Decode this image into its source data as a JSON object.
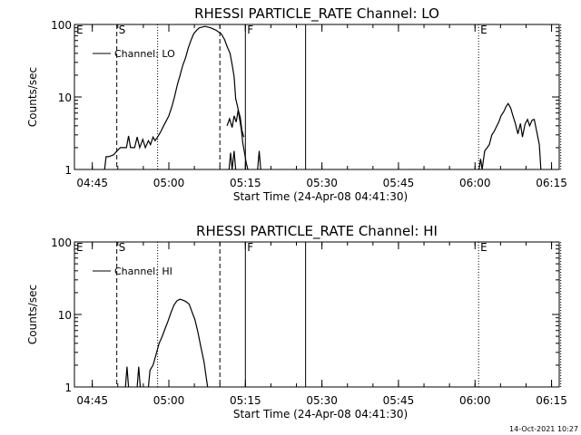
{
  "chart_data": [
    {
      "type": "line",
      "title": "RHESSI PARTICLE_RATE Channel: LO",
      "xlabel": "Start Time (24-Apr-08 04:41:30)",
      "ylabel": "Counts/sec",
      "y_scale": "log",
      "ylim": [
        1,
        100
      ],
      "xlim_minutes": [
        0,
        95
      ],
      "x_tick_labels": [
        "04:45",
        "05:00",
        "05:15",
        "05:30",
        "05:45",
        "06:00",
        "06:15"
      ],
      "y_tick_labels": [
        "1",
        "10",
        "100"
      ],
      "legend": {
        "label": "Channel: LO",
        "position": "top-left"
      },
      "markers": [
        {
          "label": "E",
          "t": 0,
          "style": "dotted"
        },
        {
          "label": "S",
          "t": 8.3,
          "style": "dashed"
        },
        {
          "label": "",
          "t": 16.3,
          "style": "dotted"
        },
        {
          "label": "",
          "t": 28.5,
          "style": "dashed"
        },
        {
          "label": "F",
          "t": 33.5,
          "style": "solid"
        },
        {
          "label": "",
          "t": 45.3,
          "style": "solid"
        },
        {
          "label": "E",
          "t": 79.2,
          "style": "dotted"
        },
        {
          "label": "",
          "t": 95.3,
          "style": "dotted"
        }
      ],
      "series": [
        {
          "segments": [
            [
              [
                5.9,
                1
              ],
              [
                6.2,
                1.5
              ],
              [
                6.7,
                1.5
              ],
              [
                7.7,
                1.6
              ],
              [
                8.3,
                1.8
              ],
              [
                9.0,
                2.0
              ],
              [
                9.6,
                2.0
              ],
              [
                10.2,
                2.0
              ],
              [
                10.6,
                2.9
              ],
              [
                11.0,
                2.0
              ],
              [
                11.8,
                2.0
              ],
              [
                12.3,
                2.8
              ],
              [
                12.8,
                2.0
              ],
              [
                13.4,
                2.6
              ],
              [
                13.9,
                2.0
              ],
              [
                14.5,
                2.5
              ],
              [
                14.9,
                2.2
              ],
              [
                15.4,
                2.8
              ],
              [
                15.8,
                2.5
              ],
              [
                16.3,
                2.8
              ],
              [
                16.9,
                3.3
              ],
              [
                17.4,
                3.9
              ],
              [
                18.0,
                4.7
              ],
              [
                18.5,
                5.5
              ],
              [
                19.1,
                7.4
              ],
              [
                19.6,
                10
              ],
              [
                20.2,
                15
              ],
              [
                20.7,
                20
              ],
              [
                21.2,
                27
              ],
              [
                21.8,
                35
              ],
              [
                22.3,
                47
              ],
              [
                22.9,
                62
              ],
              [
                23.4,
                75
              ],
              [
                24.0,
                84
              ],
              [
                24.5,
                90
              ],
              [
                25.6,
                94
              ],
              [
                26.7,
                90
              ],
              [
                27.8,
                83
              ],
              [
                28.8,
                74
              ],
              [
                29.4,
                62
              ],
              [
                29.9,
                50
              ],
              [
                30.5,
                40
              ],
              [
                30.9,
                28
              ],
              [
                31.3,
                19
              ],
              [
                31.6,
                9.5
              ],
              [
                32.0,
                7.2
              ],
              [
                32.3,
                5.3
              ],
              [
                32.7,
                3.6
              ],
              [
                33.0,
                2.3
              ],
              [
                33.4,
                1.6
              ],
              [
                33.7,
                1.2
              ],
              [
                34.0,
                1
              ]
            ],
            [
              [
                29.9,
                4.0
              ],
              [
                30.4,
                5.0
              ],
              [
                30.9,
                3.8
              ],
              [
                31.3,
                5.5
              ],
              [
                31.7,
                4.5
              ],
              [
                32.1,
                6.6
              ],
              [
                32.5,
                5.2
              ],
              [
                32.8,
                3.5
              ],
              [
                33.2,
                2.8
              ]
            ],
            [
              [
                30.3,
                1
              ],
              [
                30.6,
                1.7
              ],
              [
                30.9,
                1
              ],
              [
                31.3,
                1.8
              ],
              [
                31.6,
                1
              ]
            ],
            [
              [
                35.9,
                1
              ],
              [
                36.2,
                1.8
              ],
              [
                36.5,
                1
              ]
            ],
            [
              [
                79.3,
                1
              ],
              [
                79.6,
                1.4
              ],
              [
                79.9,
                1
              ],
              [
                80.4,
                1.8
              ],
              [
                80.9,
                2.0
              ],
              [
                81.3,
                2.2
              ],
              [
                81.8,
                3.0
              ],
              [
                82.2,
                3.3
              ],
              [
                82.7,
                3.9
              ],
              [
                83.2,
                4.6
              ],
              [
                83.6,
                5.5
              ],
              [
                84.1,
                6.2
              ],
              [
                84.6,
                7.4
              ],
              [
                85.0,
                8.1
              ],
              [
                85.5,
                7.0
              ],
              [
                85.9,
                5.6
              ],
              [
                86.4,
                4.3
              ],
              [
                86.9,
                3.1
              ],
              [
                87.4,
                4.3
              ],
              [
                87.8,
                2.8
              ],
              [
                88.3,
                4.2
              ],
              [
                88.8,
                4.9
              ],
              [
                89.2,
                4.0
              ],
              [
                89.7,
                4.8
              ],
              [
                90.1,
                4.9
              ],
              [
                90.6,
                3.3
              ],
              [
                91.1,
                2.2
              ],
              [
                91.4,
                1
              ]
            ]
          ]
        }
      ]
    },
    {
      "type": "line",
      "title": "RHESSI PARTICLE_RATE Channel: HI",
      "xlabel": "Start Time (24-Apr-08 04:41:30)",
      "ylabel": "Counts/sec",
      "y_scale": "log",
      "ylim": [
        1,
        100
      ],
      "xlim_minutes": [
        0,
        95
      ],
      "x_tick_labels": [
        "04:45",
        "05:00",
        "05:15",
        "05:30",
        "05:45",
        "06:00",
        "06:15"
      ],
      "y_tick_labels": [
        "1",
        "10",
        "100"
      ],
      "legend": {
        "label": "Channel: HI",
        "position": "top-left"
      },
      "markers": [
        {
          "label": "E",
          "t": 0,
          "style": "dotted"
        },
        {
          "label": "S",
          "t": 8.3,
          "style": "dashed"
        },
        {
          "label": "",
          "t": 16.3,
          "style": "dotted"
        },
        {
          "label": "",
          "t": 28.5,
          "style": "dashed"
        },
        {
          "label": "F",
          "t": 33.5,
          "style": "solid"
        },
        {
          "label": "",
          "t": 45.3,
          "style": "solid"
        },
        {
          "label": "E",
          "t": 79.2,
          "style": "dotted"
        },
        {
          "label": "",
          "t": 95.3,
          "style": "dotted"
        }
      ],
      "series": [
        {
          "segments": [
            [
              [
                10.0,
                1
              ],
              [
                10.3,
                1.9
              ],
              [
                10.6,
                1
              ]
            ],
            [
              [
                12.3,
                1
              ],
              [
                12.6,
                1.9
              ],
              [
                12.9,
                1
              ]
            ],
            [
              [
                14.5,
                1
              ],
              [
                14.8,
                1.7
              ],
              [
                15.4,
                2.0
              ],
              [
                16.0,
                2.8
              ],
              [
                16.6,
                4.0
              ],
              [
                17.2,
                5.0
              ],
              [
                17.8,
                6.5
              ],
              [
                18.3,
                8.0
              ],
              [
                18.9,
                10.5
              ],
              [
                19.5,
                13.5
              ],
              [
                20.1,
                15.5
              ],
              [
                20.7,
                16.2
              ],
              [
                21.3,
                15.7
              ],
              [
                21.9,
                15.0
              ],
              [
                22.5,
                13.8
              ],
              [
                23.0,
                11.0
              ],
              [
                23.6,
                8.5
              ],
              [
                24.2,
                5.7
              ],
              [
                24.8,
                3.5
              ],
              [
                25.4,
                2.2
              ],
              [
                25.8,
                1.4
              ],
              [
                26.1,
                1
              ]
            ]
          ]
        }
      ]
    }
  ],
  "footer": {
    "date": "14-Oct-2021 10:27"
  }
}
